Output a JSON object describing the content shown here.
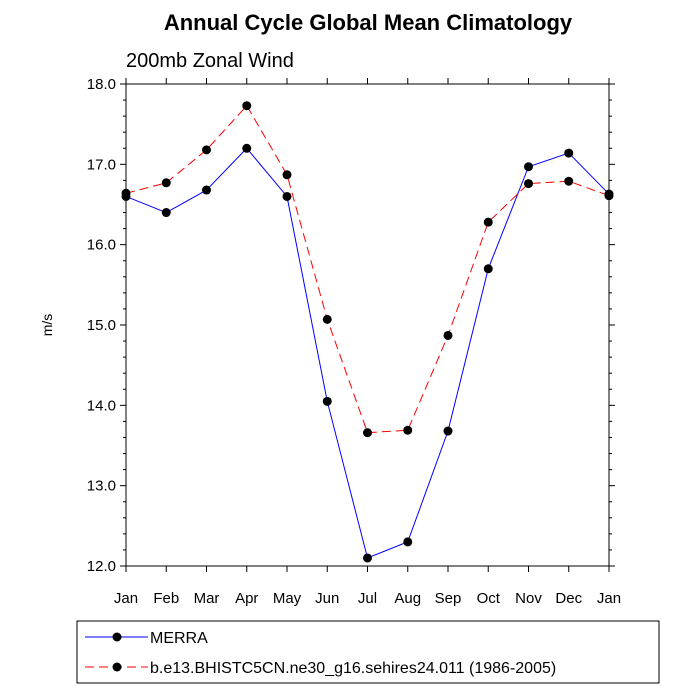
{
  "chart_data": {
    "type": "line",
    "title": "Annual Cycle Global Mean Climatology",
    "subtitle": "200mb Zonal Wind",
    "xlabel": "",
    "ylabel": "m/s",
    "categories": [
      "Jan",
      "Feb",
      "Mar",
      "Apr",
      "May",
      "Jun",
      "Jul",
      "Aug",
      "Sep",
      "Oct",
      "Nov",
      "Dec",
      "Jan"
    ],
    "ylim": [
      12.0,
      18.0
    ],
    "yticks": [
      "12.0",
      "13.0",
      "14.0",
      "15.0",
      "16.0",
      "17.0",
      "18.0"
    ],
    "grid": false,
    "legend_position": "bottom",
    "series": [
      {
        "name": "MERRA",
        "color": "#0000ff",
        "line_style": "solid",
        "marker": "filled-circle",
        "values": [
          16.6,
          16.4,
          16.68,
          17.2,
          16.6,
          14.05,
          12.1,
          12.3,
          13.68,
          15.7,
          16.97,
          17.14,
          16.63
        ]
      },
      {
        "name": "b.e13.BHISTC5CN.ne30_g16.sehires24.011 (1986-2005)",
        "color": "#ff0000",
        "line_style": "dashed",
        "marker": "filled-circle",
        "values": [
          16.64,
          16.77,
          17.18,
          17.73,
          16.87,
          15.07,
          13.66,
          13.69,
          14.87,
          16.28,
          16.76,
          16.79,
          16.61
        ]
      }
    ]
  }
}
